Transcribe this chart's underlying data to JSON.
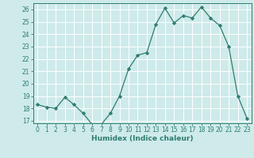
{
  "x": [
    0,
    1,
    2,
    3,
    4,
    5,
    6,
    7,
    8,
    9,
    10,
    11,
    12,
    13,
    14,
    15,
    16,
    17,
    18,
    19,
    20,
    21,
    22,
    23
  ],
  "y": [
    18.3,
    18.1,
    18.0,
    18.9,
    18.3,
    17.6,
    16.7,
    16.7,
    17.6,
    19.0,
    21.2,
    22.3,
    22.5,
    24.8,
    26.1,
    24.9,
    25.5,
    25.3,
    26.2,
    25.3,
    24.7,
    23.0,
    19.0,
    17.2
  ],
  "line_color": "#2e7d6e",
  "marker": "D",
  "marker_size": 2.2,
  "bg_color": "#ceeaea",
  "grid_color": "#ffffff",
  "grid_minor_color": "#e8f8f8",
  "tick_color": "#2e7d6e",
  "label_color": "#2e7d6e",
  "xlabel": "Humidex (Indice chaleur)",
  "ylim": [
    16.8,
    26.5
  ],
  "yticks": [
    17,
    18,
    19,
    20,
    21,
    22,
    23,
    24,
    25,
    26
  ],
  "xticks": [
    0,
    1,
    2,
    3,
    4,
    5,
    6,
    7,
    8,
    9,
    10,
    11,
    12,
    13,
    14,
    15,
    16,
    17,
    18,
    19,
    20,
    21,
    22,
    23
  ],
  "xlabel_fontsize": 6.5,
  "tick_fontsize": 5.5,
  "linewidth": 0.9
}
